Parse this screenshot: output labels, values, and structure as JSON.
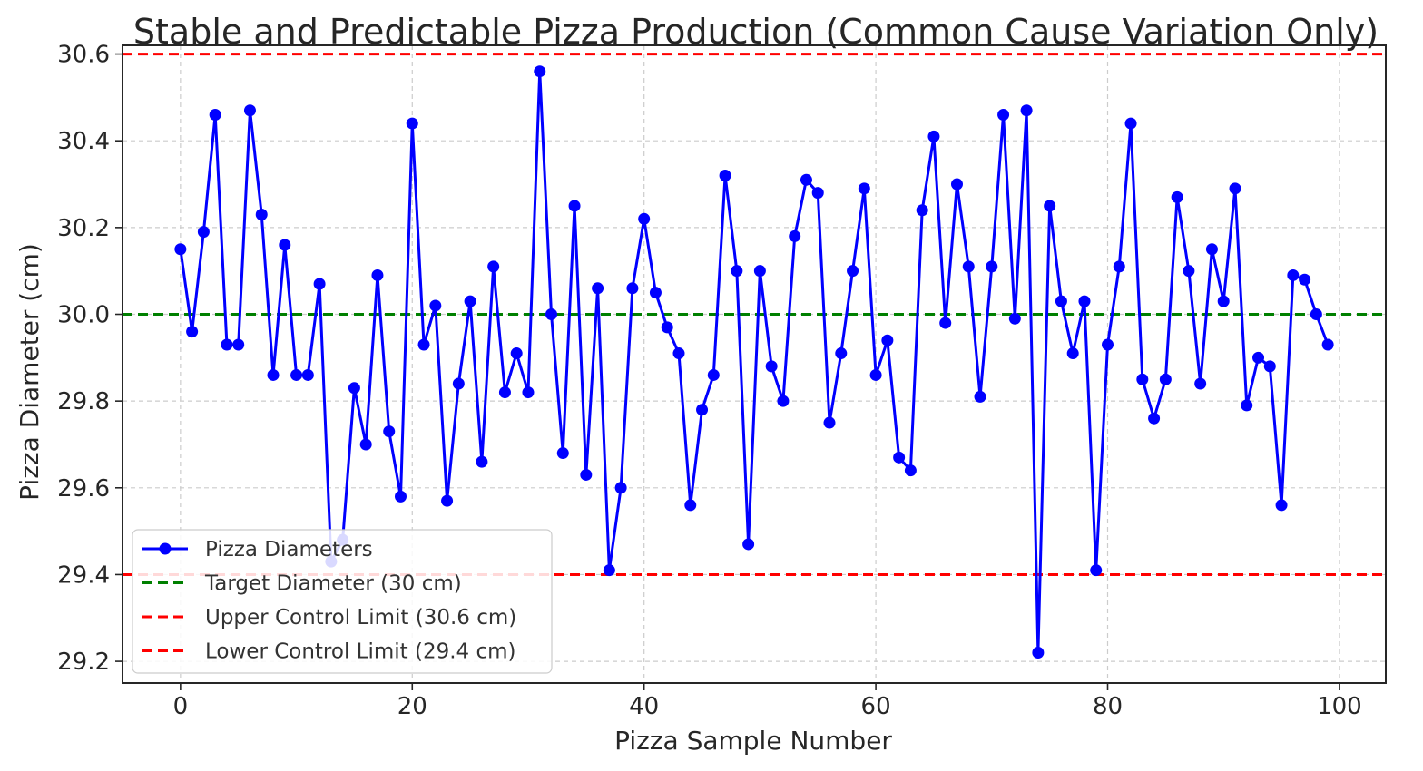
{
  "chart_data": {
    "type": "line",
    "title": "Stable and Predictable Pizza Production (Common Cause Variation Only)",
    "xlabel": "Pizza Sample Number",
    "ylabel": "Pizza Diameter (cm)",
    "xlim": [
      -5,
      104
    ],
    "ylim": [
      29.15,
      30.62
    ],
    "xticks": [
      0,
      20,
      40,
      60,
      80,
      100
    ],
    "yticks": [
      29.2,
      29.4,
      29.6,
      29.8,
      30.0,
      30.2,
      30.4,
      30.6
    ],
    "grid": true,
    "legend_position": "lower-left",
    "series": [
      {
        "name": "Pizza Diameters",
        "color": "#0000ff",
        "marker": "circle",
        "values": [
          30.15,
          29.96,
          30.19,
          30.46,
          29.93,
          29.93,
          30.47,
          30.23,
          29.86,
          30.16,
          29.86,
          29.86,
          30.07,
          29.43,
          29.48,
          29.83,
          29.7,
          30.09,
          29.73,
          29.58,
          30.44,
          29.93,
          30.02,
          29.57,
          29.84,
          30.03,
          29.66,
          30.11,
          29.82,
          29.91,
          29.82,
          30.56,
          30.0,
          29.68,
          30.25,
          29.63,
          30.06,
          29.41,
          29.6,
          30.06,
          30.22,
          30.05,
          29.97,
          29.91,
          29.56,
          29.78,
          29.86,
          30.32,
          30.1,
          29.47,
          30.1,
          29.88,
          29.8,
          30.18,
          30.31,
          30.28,
          29.75,
          29.91,
          30.1,
          30.29,
          29.86,
          29.94,
          29.67,
          29.64,
          30.24,
          30.41,
          29.98,
          30.3,
          30.11,
          29.81,
          30.11,
          30.46,
          29.99,
          30.47,
          29.22,
          30.25,
          30.03,
          29.91,
          30.03,
          29.41,
          29.93,
          30.11,
          30.44,
          29.85,
          29.76,
          29.85,
          30.27,
          30.1,
          29.84,
          30.15,
          30.03,
          30.29,
          29.79,
          29.9,
          29.88,
          29.56,
          30.09,
          30.08,
          30.0,
          29.93
        ]
      }
    ],
    "reference_lines": [
      {
        "name": "Target Diameter (30 cm)",
        "y": 30.0,
        "color": "#008000",
        "style": "dashed"
      },
      {
        "name": "Upper Control Limit (30.6 cm)",
        "y": 30.6,
        "color": "#ff0000",
        "style": "dashed"
      },
      {
        "name": "Lower Control Limit (29.4 cm)",
        "y": 29.4,
        "color": "#ff0000",
        "style": "dashed"
      }
    ]
  }
}
